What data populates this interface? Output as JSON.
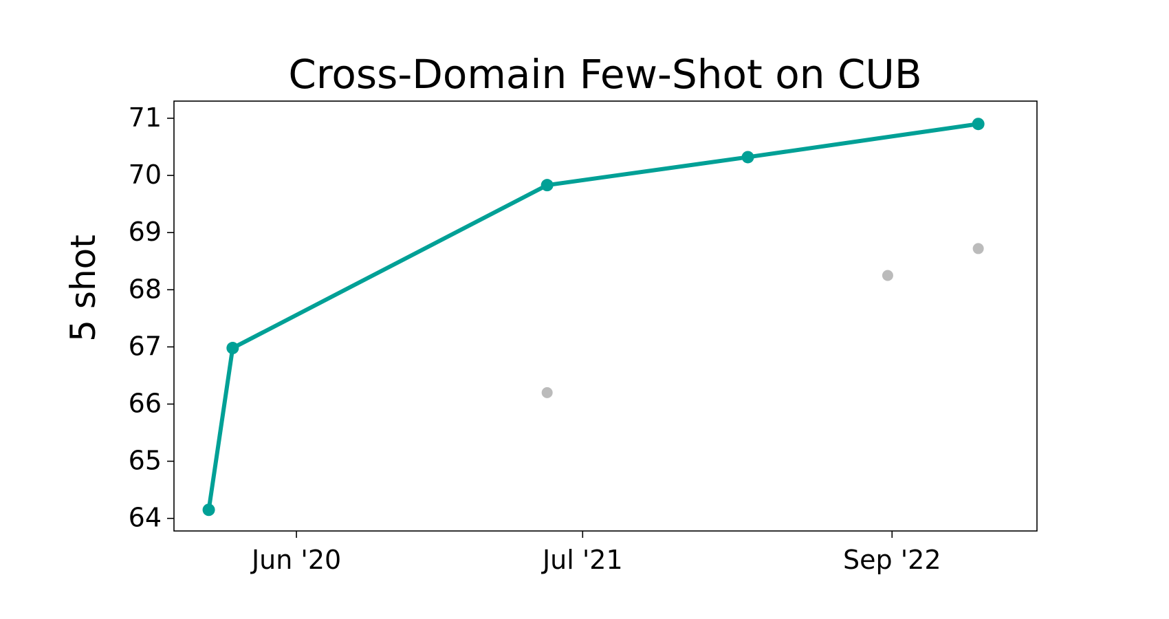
{
  "chart_data": {
    "type": "line",
    "title": "Cross-Domain Few-Shot on CUB",
    "xlabel": "",
    "ylabel": "5 shot",
    "x_axis_type": "date",
    "xlim": [
      "2019-12-15",
      "2023-03-20"
    ],
    "ylim": [
      63.78,
      71.3
    ],
    "x_ticks": [
      {
        "date": "2020-06-01",
        "label": "Jun '20"
      },
      {
        "date": "2021-07-01",
        "label": "Jul '21"
      },
      {
        "date": "2022-09-01",
        "label": "Sep '22"
      }
    ],
    "y_ticks": [
      64,
      65,
      66,
      67,
      68,
      69,
      70,
      71
    ],
    "grid": false,
    "legend": "none",
    "series": [
      {
        "style": "line-marker",
        "color": "#00A096",
        "points": [
          {
            "x": "2020-02-01",
            "y": 64.15
          },
          {
            "x": "2020-03-05",
            "y": 66.98
          },
          {
            "x": "2021-05-13",
            "y": 69.83
          },
          {
            "x": "2022-02-14",
            "y": 70.32
          },
          {
            "x": "2022-12-29",
            "y": 70.9
          }
        ]
      },
      {
        "style": "scatter",
        "color": "#BBBBBB",
        "points": [
          {
            "x": "2021-05-13",
            "y": 66.2
          },
          {
            "x": "2022-08-26",
            "y": 68.25
          },
          {
            "x": "2022-12-29",
            "y": 68.72
          }
        ]
      }
    ]
  }
}
